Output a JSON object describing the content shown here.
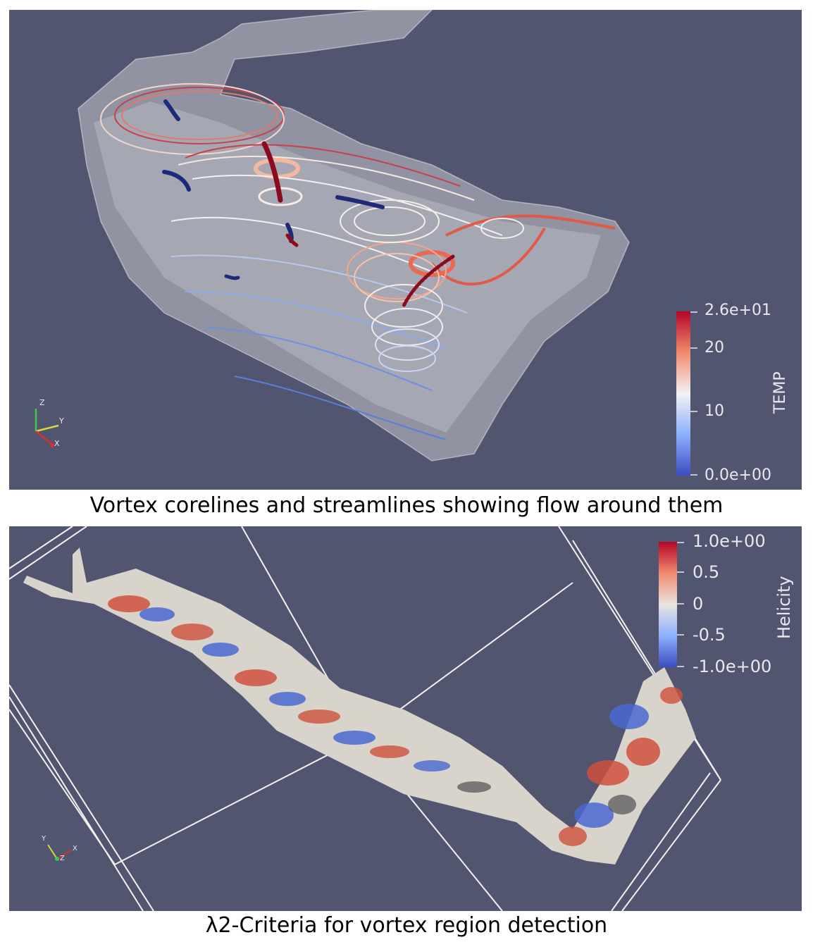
{
  "top_panel": {
    "caption": "Vortex corelines and streamlines showing flow around them",
    "colorbar": {
      "title": "TEMP",
      "ticks": [
        "2.6e+01",
        "20",
        "10",
        "0.0e+00"
      ],
      "colors": [
        "#b40426",
        "#f08b6e",
        "#f2f2f2",
        "#8db0fe",
        "#3b4cc0"
      ]
    },
    "axes_triad": {
      "z": "Z",
      "y": "Y",
      "x": "X"
    }
  },
  "bottom_panel": {
    "caption": "λ2-Criteria for vortex region detection",
    "colorbar": {
      "title": "Helicity",
      "ticks": [
        "1.0e+00",
        "0.5",
        "0",
        "-0.5",
        "-1.0e+00"
      ],
      "colors": [
        "#b40426",
        "#f08b6e",
        "#e8e4e0",
        "#8db0fe",
        "#3b4cc0"
      ]
    },
    "axes_triad": {
      "y": "Y",
      "z": "Z",
      "x": "X"
    }
  },
  "background_color": "#525570"
}
